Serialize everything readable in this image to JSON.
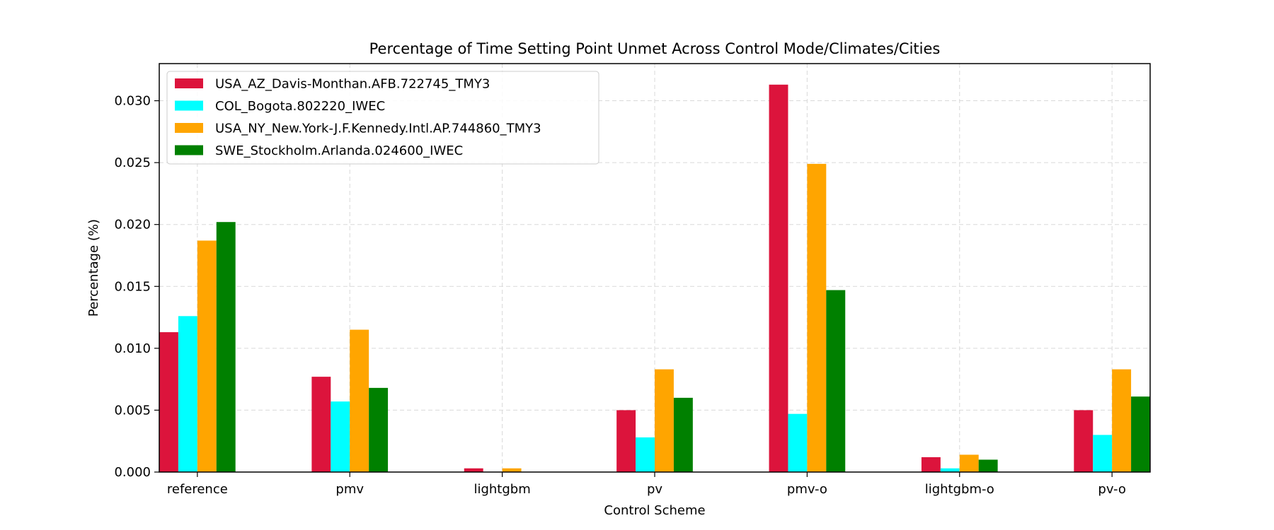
{
  "chart_data": {
    "type": "bar",
    "title": "Percentage of Time Setting Point Unmet Across Control Mode/Climates/Cities",
    "xlabel": "Control Scheme",
    "ylabel": "Percentage (%)",
    "categories": [
      "reference",
      "pmv",
      "lightgbm",
      "pv",
      "pmv-o",
      "lightgbm-o",
      "pv-o"
    ],
    "ylim": [
      0,
      0.033
    ],
    "yticks": [
      0.0,
      0.005,
      0.01,
      0.015,
      0.02,
      0.025,
      0.03
    ],
    "ytick_labels": [
      "0.000",
      "0.005",
      "0.010",
      "0.015",
      "0.020",
      "0.025",
      "0.030"
    ],
    "grid": true,
    "legend_position": "top-left",
    "series": [
      {
        "name": "USA_AZ_Davis-Monthan.AFB.722745_TMY3",
        "color": "#dc143c",
        "values": [
          0.0113,
          0.0077,
          0.0003,
          0.005,
          0.0313,
          0.0012,
          0.005
        ]
      },
      {
        "name": "COL_Bogota.802220_IWEC",
        "color": "#00ffff",
        "values": [
          0.0126,
          0.0057,
          0.0,
          0.0028,
          0.0047,
          0.0003,
          0.003
        ]
      },
      {
        "name": "USA_NY_New.York-J.F.Kennedy.Intl.AP.744860_TMY3",
        "color": "#ffa500",
        "values": [
          0.0187,
          0.0115,
          0.0003,
          0.0083,
          0.0249,
          0.0014,
          0.0083
        ]
      },
      {
        "name": "SWE_Stockholm.Arlanda.024600_IWEC",
        "color": "#008000",
        "values": [
          0.0202,
          0.0068,
          0.0,
          0.006,
          0.0147,
          0.001,
          0.0061
        ]
      }
    ]
  }
}
